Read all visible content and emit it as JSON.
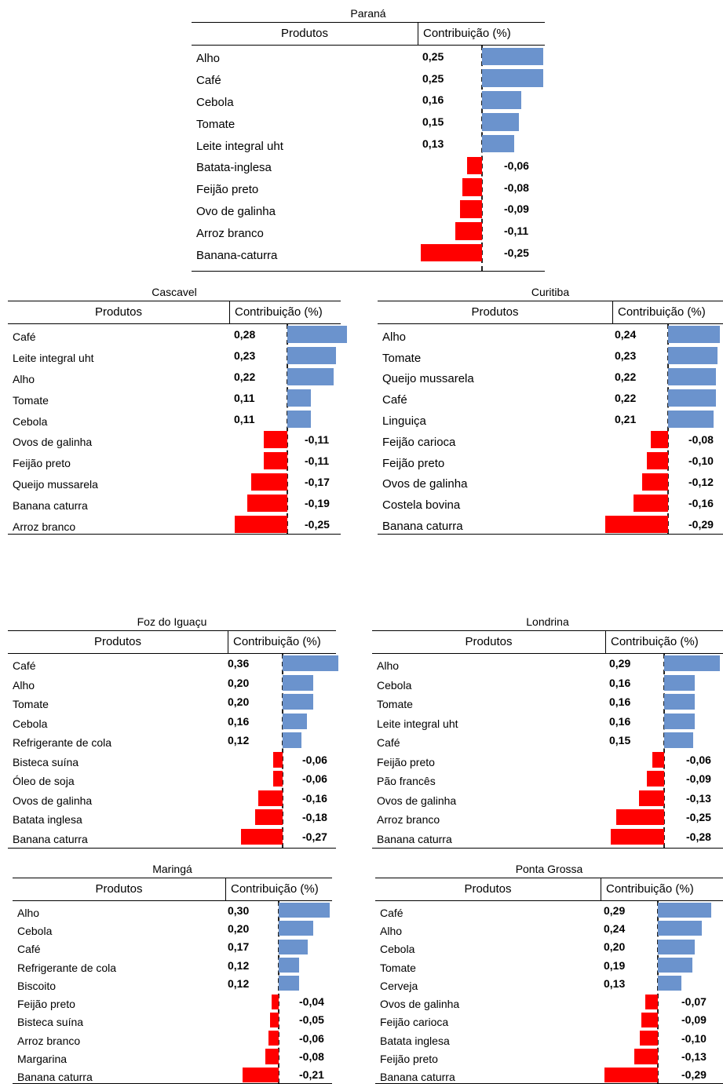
{
  "header": {
    "products": "Produtos",
    "contribution": "Contribuição (%)"
  },
  "chart_data": [
    {
      "type": "bar",
      "title": "Paraná",
      "categories": [
        "Alho",
        "Café",
        "Cebola",
        "Tomate",
        "Leite integral uht",
        "Batata-inglesa",
        "Feijão preto",
        "Ovo de galinha",
        "Arroz branco",
        "Banana-caturra"
      ],
      "values": [
        0.25,
        0.25,
        0.16,
        0.15,
        0.13,
        -0.06,
        -0.08,
        -0.09,
        -0.11,
        -0.25
      ],
      "labels": [
        "0,25",
        "0,25",
        "0,16",
        "0,15",
        "0,13",
        "-0,06",
        "-0,08",
        "-0,09",
        "-0,11",
        "-0,25"
      ]
    },
    {
      "type": "bar",
      "title": "Cascavel",
      "categories": [
        "Café",
        "Leite integral uht",
        "Alho",
        "Tomate",
        "Cebola",
        "Ovos de galinha",
        "Feijão preto",
        "Queijo mussarela",
        "Banana caturra",
        "Arroz branco"
      ],
      "values": [
        0.28,
        0.23,
        0.22,
        0.11,
        0.11,
        -0.11,
        -0.11,
        -0.17,
        -0.19,
        -0.25
      ],
      "labels": [
        "0,28",
        "0,23",
        "0,22",
        "0,11",
        "0,11",
        "-0,11",
        "-0,11",
        "-0,17",
        "-0,19",
        "-0,25"
      ]
    },
    {
      "type": "bar",
      "title": "Curitiba",
      "categories": [
        "Alho",
        "Tomate",
        "Queijo mussarela",
        "Café",
        "Linguiça",
        "Feijão carioca",
        "Feijão preto",
        "Ovos de galinha",
        "Costela bovina",
        "Banana caturra"
      ],
      "values": [
        0.24,
        0.23,
        0.22,
        0.22,
        0.21,
        -0.08,
        -0.1,
        -0.12,
        -0.16,
        -0.29
      ],
      "labels": [
        "0,24",
        "0,23",
        "0,22",
        "0,22",
        "0,21",
        "-0,08",
        "-0,10",
        "-0,12",
        "-0,16",
        "-0,29"
      ]
    },
    {
      "type": "bar",
      "title": "Foz do Iguaçu",
      "categories": [
        "Café",
        "Alho",
        "Tomate",
        "Cebola",
        "Refrigerante de cola",
        "Bisteca suína",
        "Óleo de soja",
        "Ovos de galinha",
        "Batata inglesa",
        "Banana caturra"
      ],
      "values": [
        0.36,
        0.2,
        0.2,
        0.16,
        0.12,
        -0.06,
        -0.06,
        -0.16,
        -0.18,
        -0.27
      ],
      "labels": [
        "0,36",
        "0,20",
        "0,20",
        "0,16",
        "0,12",
        "-0,06",
        "-0,06",
        "-0,16",
        "-0,18",
        "-0,27"
      ]
    },
    {
      "type": "bar",
      "title": "Londrina",
      "categories": [
        "Alho",
        "Cebola",
        "Tomate",
        "Leite integral uht",
        "Café",
        "Feijão preto",
        "Pão francês",
        "Ovos de galinha",
        "Arroz branco",
        "Banana caturra"
      ],
      "values": [
        0.29,
        0.16,
        0.16,
        0.16,
        0.15,
        -0.06,
        -0.09,
        -0.13,
        -0.25,
        -0.28
      ],
      "labels": [
        "0,29",
        "0,16",
        "0,16",
        "0,16",
        "0,15",
        "-0,06",
        "-0,09",
        "-0,13",
        "-0,25",
        "-0,28"
      ]
    },
    {
      "type": "bar",
      "title": "Maringá",
      "categories": [
        "Alho",
        "Cebola",
        "Café",
        "Refrigerante de cola",
        "Biscoito",
        "Feijão preto",
        "Bisteca suína",
        "Arroz branco",
        "Margarina",
        "Banana caturra"
      ],
      "values": [
        0.3,
        0.2,
        0.17,
        0.12,
        0.12,
        -0.04,
        -0.05,
        -0.06,
        -0.08,
        -0.21
      ],
      "labels": [
        "0,30",
        "0,20",
        "0,17",
        "0,12",
        "0,12",
        "-0,04",
        "-0,05",
        "-0,06",
        "-0,08",
        "-0,21"
      ]
    },
    {
      "type": "bar",
      "title": "Ponta Grossa",
      "categories": [
        "Café",
        "Alho",
        "Cebola",
        "Tomate",
        "Cerveja",
        "Ovos de galinha",
        "Feijão carioca",
        "Batata inglesa",
        "Feijão preto",
        "Banana caturra"
      ],
      "values": [
        0.29,
        0.24,
        0.2,
        0.19,
        0.13,
        -0.07,
        -0.09,
        -0.1,
        -0.13,
        -0.29
      ],
      "labels": [
        "0,29",
        "0,24",
        "0,20",
        "0,19",
        "0,13",
        "-0,07",
        "-0,09",
        "-0,10",
        "-0,13",
        "-0,29"
      ]
    }
  ]
}
